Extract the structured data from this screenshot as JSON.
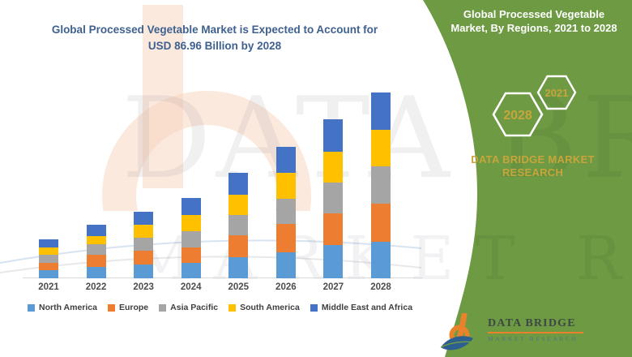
{
  "left_panel": {
    "title_line1": "Global Processed Vegetable Market is Expected to Account for",
    "title_line2": "USD 86.96 Billion by 2028",
    "title_color": "#3F618F"
  },
  "chart_data": {
    "type": "bar",
    "stacked": true,
    "unit": "USD Billion",
    "stated_total_2028": 86.96,
    "categories": [
      "2021",
      "2022",
      "2023",
      "2024",
      "2025",
      "2026",
      "2027",
      "2028"
    ],
    "series": [
      {
        "name": "North America",
        "color": "#5B9BD5",
        "values": [
          3.9,
          5.4,
          6.5,
          7.1,
          9.8,
          12.3,
          15.5,
          17.1
        ]
      },
      {
        "name": "Europe",
        "color": "#ED7D31",
        "values": [
          3.4,
          5.7,
          6.4,
          7.5,
          10.5,
          13.1,
          14.8,
          17.8
        ]
      },
      {
        "name": "Asia Pacific",
        "color": "#A5A5A5",
        "values": [
          3.8,
          4.7,
          6.0,
          7.4,
          9.5,
          11.9,
          14.7,
          17.4
        ]
      },
      {
        "name": "South America",
        "color": "#FFC000",
        "values": [
          3.4,
          3.9,
          6.4,
          7.6,
          9.5,
          12.2,
          14.5,
          17.4
        ]
      },
      {
        "name": "Middle East and Africa",
        "color": "#4472C4",
        "values": [
          3.8,
          5.3,
          6.0,
          8.0,
          10.2,
          12.3,
          15.0,
          17.3
        ]
      }
    ],
    "title": "Global Processed Vegetable Market is Expected to Account for USD 86.96 Billion by 2028",
    "xlabel": "",
    "ylabel": "",
    "y_axis_visible": false,
    "grid": false,
    "legend_position": "bottom"
  },
  "right_panel": {
    "background_color": "#6D9A43",
    "title_line1": "Global Processed Vegetable",
    "title_line2": "Market, By Regions, 2021 to 2028",
    "hexagon_small_label": "2021",
    "hexagon_large_label": "2028",
    "brand_line1": "DATA BRIDGE MARKET",
    "brand_line2": "RESEARCH",
    "accent_gold": "#C7A53C"
  },
  "logo": {
    "name": "DATA BRIDGE",
    "tagline": "MARKET RESEARCH",
    "orange": "#E8822B",
    "blue": "#2C5E8F"
  },
  "watermark": {
    "line1": "DATA BRIDGE",
    "line2": "MARKET RESEARCH"
  }
}
